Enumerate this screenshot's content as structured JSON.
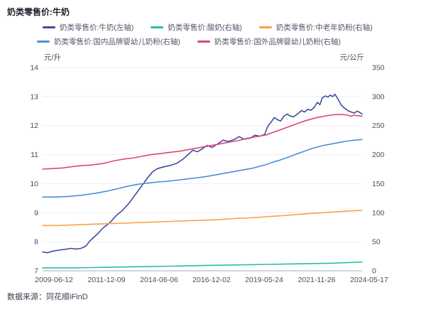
{
  "header": {
    "title": "奶类零售价:牛奶"
  },
  "footer": {
    "source": "数据来源：同花顺iFinD"
  },
  "colors": {
    "grid": "#ededf4",
    "axis_line": "#b9bdc9",
    "axis_text": "#4d4d61",
    "legend_text": "#55556a"
  },
  "chart_data": {
    "type": "line",
    "title": "奶类零售价:牛奶",
    "legend_position": "top",
    "grid": true,
    "left_axis": {
      "unit": "元/升",
      "range": [
        7,
        14
      ],
      "ticks": [
        14,
        13,
        12,
        11,
        10,
        9,
        8,
        7
      ]
    },
    "right_axis": {
      "unit": "元/公斤",
      "range": [
        0,
        350
      ],
      "ticks": [
        350,
        300,
        250,
        200,
        150,
        100,
        50,
        0
      ]
    },
    "x_axis": {
      "labels": [
        "2009-06-12",
        "2011-12-09",
        "2014-06-06",
        "2016-12-02",
        "2019-05-24",
        "2021-11-26",
        "2024-05-17"
      ]
    },
    "series": [
      {
        "name": "奶类零售价:牛奶(左轴)",
        "axis": "left",
        "color": "#3d4d9a",
        "points": [
          [
            0,
            7.65
          ],
          [
            0.015,
            7.62
          ],
          [
            0.03,
            7.67
          ],
          [
            0.05,
            7.71
          ],
          [
            0.07,
            7.74
          ],
          [
            0.09,
            7.77
          ],
          [
            0.105,
            7.75
          ],
          [
            0.12,
            7.77
          ],
          [
            0.135,
            7.85
          ],
          [
            0.15,
            8.05
          ],
          [
            0.17,
            8.25
          ],
          [
            0.19,
            8.48
          ],
          [
            0.21,
            8.65
          ],
          [
            0.23,
            8.9
          ],
          [
            0.25,
            9.08
          ],
          [
            0.27,
            9.32
          ],
          [
            0.29,
            9.62
          ],
          [
            0.31,
            9.92
          ],
          [
            0.33,
            10.22
          ],
          [
            0.345,
            10.42
          ],
          [
            0.36,
            10.52
          ],
          [
            0.38,
            10.58
          ],
          [
            0.4,
            10.63
          ],
          [
            0.42,
            10.7
          ],
          [
            0.44,
            10.85
          ],
          [
            0.455,
            11.0
          ],
          [
            0.47,
            11.15
          ],
          [
            0.485,
            11.1
          ],
          [
            0.5,
            11.2
          ],
          [
            0.515,
            11.32
          ],
          [
            0.53,
            11.25
          ],
          [
            0.55,
            11.38
          ],
          [
            0.565,
            11.5
          ],
          [
            0.58,
            11.45
          ],
          [
            0.6,
            11.52
          ],
          [
            0.615,
            11.62
          ],
          [
            0.63,
            11.53
          ],
          [
            0.65,
            11.57
          ],
          [
            0.665,
            11.67
          ],
          [
            0.68,
            11.63
          ],
          [
            0.695,
            11.7
          ],
          [
            0.705,
            11.98
          ],
          [
            0.715,
            12.12
          ],
          [
            0.725,
            12.28
          ],
          [
            0.735,
            12.2
          ],
          [
            0.745,
            12.16
          ],
          [
            0.755,
            12.32
          ],
          [
            0.765,
            12.4
          ],
          [
            0.775,
            12.33
          ],
          [
            0.785,
            12.3
          ],
          [
            0.8,
            12.42
          ],
          [
            0.81,
            12.52
          ],
          [
            0.82,
            12.47
          ],
          [
            0.83,
            12.56
          ],
          [
            0.84,
            12.53
          ],
          [
            0.85,
            12.63
          ],
          [
            0.86,
            12.8
          ],
          [
            0.868,
            12.72
          ],
          [
            0.875,
            12.95
          ],
          [
            0.885,
            13.02
          ],
          [
            0.893,
            12.98
          ],
          [
            0.9,
            13.05
          ],
          [
            0.908,
            13.0
          ],
          [
            0.915,
            13.08
          ],
          [
            0.925,
            12.9
          ],
          [
            0.935,
            12.7
          ],
          [
            0.945,
            12.6
          ],
          [
            0.955,
            12.52
          ],
          [
            0.965,
            12.47
          ],
          [
            0.975,
            12.43
          ],
          [
            0.985,
            12.5
          ],
          [
            1,
            12.4
          ]
        ]
      },
      {
        "name": "奶类零售价:酸奶(右轴)",
        "axis": "right",
        "color": "#2abda8",
        "points": [
          [
            0,
            5
          ],
          [
            0.1,
            5
          ],
          [
            0.2,
            6
          ],
          [
            0.3,
            7
          ],
          [
            0.4,
            8
          ],
          [
            0.5,
            9
          ],
          [
            0.6,
            10
          ],
          [
            0.7,
            11
          ],
          [
            0.8,
            12
          ],
          [
            0.9,
            13
          ],
          [
            0.95,
            14
          ],
          [
            1,
            15
          ]
        ]
      },
      {
        "name": "奶类零售价:中老年奶粉(右轴)",
        "axis": "right",
        "color": "#f7a348",
        "points": [
          [
            0,
            78
          ],
          [
            0.05,
            78
          ],
          [
            0.1,
            79
          ],
          [
            0.15,
            80
          ],
          [
            0.2,
            81
          ],
          [
            0.25,
            82
          ],
          [
            0.3,
            83
          ],
          [
            0.35,
            84
          ],
          [
            0.4,
            85
          ],
          [
            0.45,
            86
          ],
          [
            0.5,
            87
          ],
          [
            0.55,
            88
          ],
          [
            0.6,
            90
          ],
          [
            0.65,
            91
          ],
          [
            0.7,
            93
          ],
          [
            0.75,
            95
          ],
          [
            0.8,
            97
          ],
          [
            0.85,
            99
          ],
          [
            0.88,
            100
          ],
          [
            0.9,
            101
          ],
          [
            0.93,
            102
          ],
          [
            0.96,
            103
          ],
          [
            1,
            104
          ]
        ]
      },
      {
        "name": "奶类零售价:国内品牌婴幼儿奶粉(右轴)",
        "axis": "right",
        "color": "#4e8fd5",
        "points": [
          [
            0,
            127
          ],
          [
            0.04,
            127
          ],
          [
            0.08,
            128
          ],
          [
            0.12,
            130
          ],
          [
            0.16,
            133
          ],
          [
            0.2,
            137
          ],
          [
            0.24,
            142
          ],
          [
            0.27,
            146
          ],
          [
            0.3,
            149
          ],
          [
            0.33,
            151
          ],
          [
            0.36,
            153
          ],
          [
            0.39,
            154
          ],
          [
            0.42,
            156
          ],
          [
            0.45,
            158
          ],
          [
            0.48,
            160
          ],
          [
            0.51,
            162
          ],
          [
            0.54,
            165
          ],
          [
            0.57,
            168
          ],
          [
            0.6,
            171
          ],
          [
            0.63,
            174
          ],
          [
            0.66,
            177
          ],
          [
            0.68,
            180
          ],
          [
            0.7,
            183
          ],
          [
            0.72,
            187
          ],
          [
            0.74,
            190
          ],
          [
            0.76,
            194
          ],
          [
            0.78,
            198
          ],
          [
            0.8,
            202
          ],
          [
            0.82,
            206
          ],
          [
            0.84,
            210
          ],
          [
            0.86,
            213
          ],
          [
            0.88,
            216
          ],
          [
            0.9,
            218
          ],
          [
            0.92,
            220
          ],
          [
            0.94,
            222
          ],
          [
            0.96,
            224
          ],
          [
            0.98,
            225
          ],
          [
            1,
            226
          ]
        ]
      },
      {
        "name": "奶类零售价:国外品牌婴幼儿奶粉(右轴)",
        "axis": "right",
        "color": "#e0437e",
        "points": [
          [
            0,
            175
          ],
          [
            0.03,
            176
          ],
          [
            0.06,
            177
          ],
          [
            0.09,
            179
          ],
          [
            0.12,
            181
          ],
          [
            0.15,
            182
          ],
          [
            0.18,
            184
          ],
          [
            0.2,
            186
          ],
          [
            0.22,
            189
          ],
          [
            0.25,
            192
          ],
          [
            0.28,
            194
          ],
          [
            0.31,
            197
          ],
          [
            0.34,
            200
          ],
          [
            0.37,
            202
          ],
          [
            0.4,
            204
          ],
          [
            0.43,
            206
          ],
          [
            0.46,
            209
          ],
          [
            0.49,
            212
          ],
          [
            0.52,
            215
          ],
          [
            0.55,
            218
          ],
          [
            0.58,
            221
          ],
          [
            0.61,
            224
          ],
          [
            0.64,
            228
          ],
          [
            0.67,
            231
          ],
          [
            0.7,
            234
          ],
          [
            0.72,
            238
          ],
          [
            0.74,
            242
          ],
          [
            0.76,
            246
          ],
          [
            0.78,
            250
          ],
          [
            0.8,
            254
          ],
          [
            0.82,
            258
          ],
          [
            0.84,
            261
          ],
          [
            0.86,
            264
          ],
          [
            0.88,
            266
          ],
          [
            0.9,
            268
          ],
          [
            0.92,
            269
          ],
          [
            0.94,
            269
          ],
          [
            0.955,
            268
          ],
          [
            0.965,
            266
          ],
          [
            0.975,
            268
          ],
          [
            0.985,
            267
          ],
          [
            1,
            266
          ]
        ]
      }
    ]
  }
}
